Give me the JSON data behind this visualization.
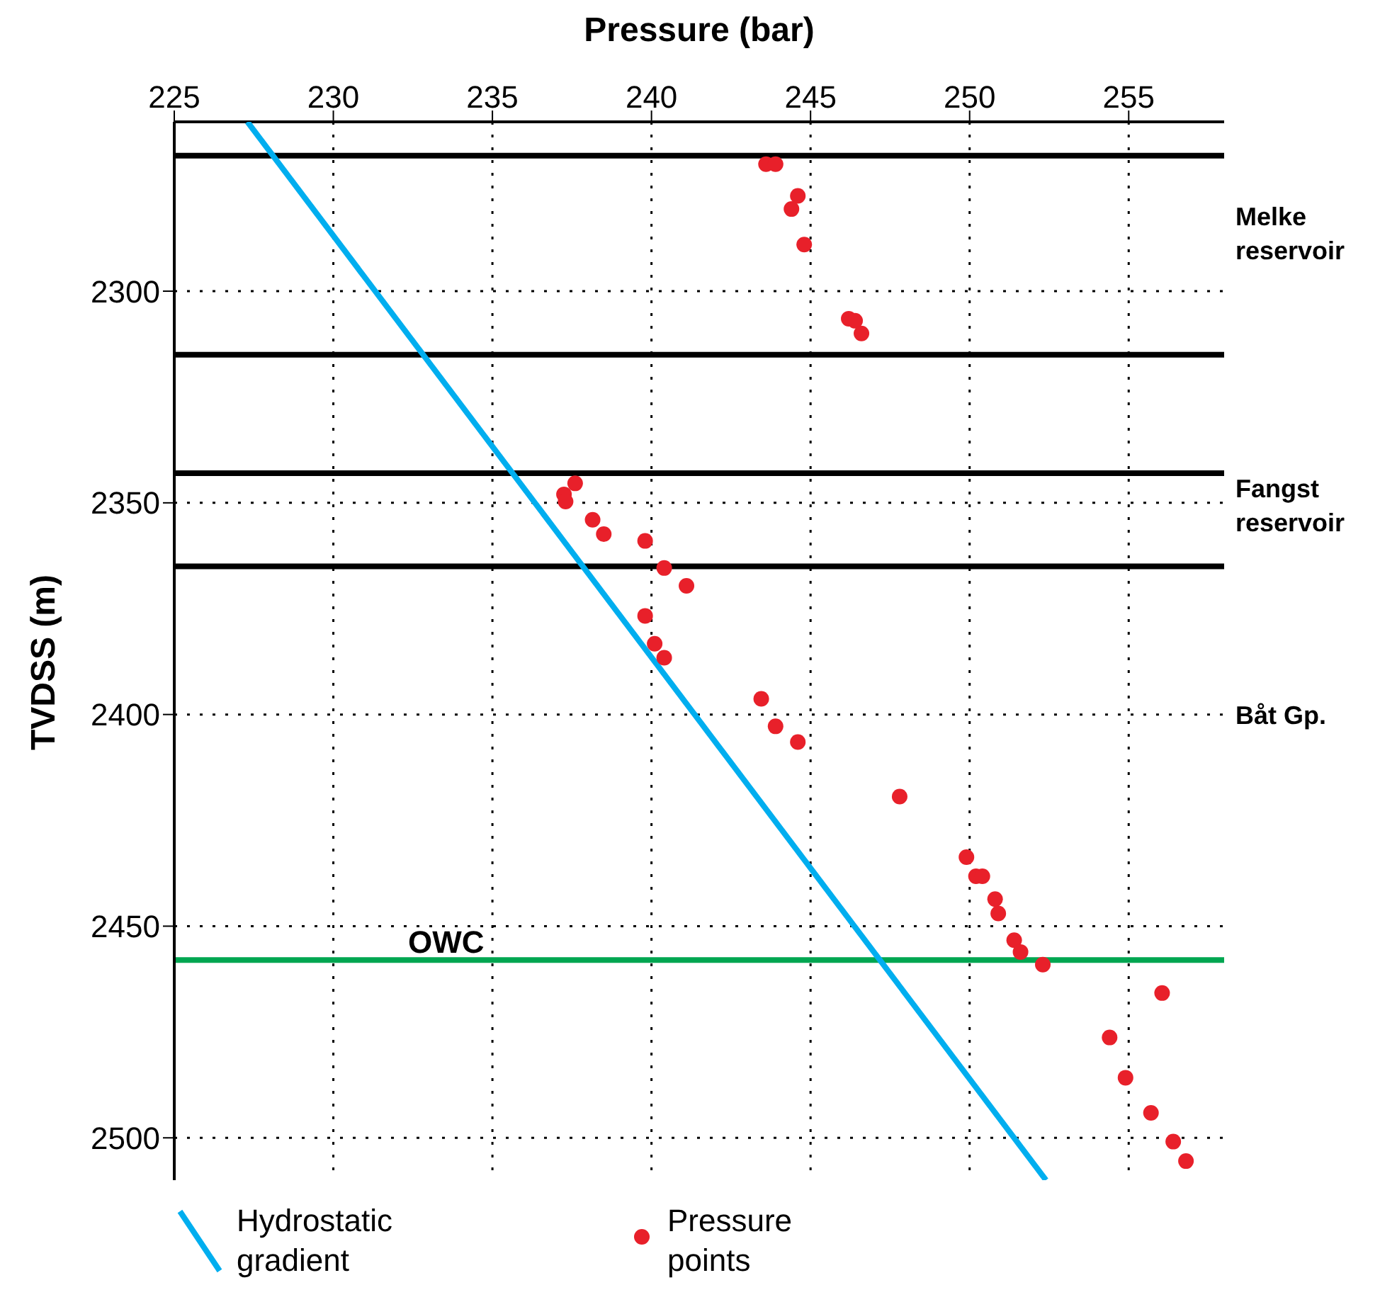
{
  "chart_data": {
    "type": "scatter",
    "xlabel": "Pressure (bar)",
    "ylabel": "TVDSS (m)",
    "xlim": [
      225,
      258
    ],
    "xticks": [
      225,
      230,
      235,
      240,
      245,
      250,
      255
    ],
    "ylim": [
      2510,
      2260
    ],
    "yticks": [
      2300,
      2350,
      2400,
      2450,
      2500
    ],
    "grid": true,
    "legend": "bottom",
    "series": [
      {
        "name": "Hydrostatic gradient",
        "type": "line",
        "color": "#00aeef",
        "x": [
          227.3,
          252.4
        ],
        "values": [
          2260,
          2510
        ]
      },
      {
        "name": "Pressure points",
        "type": "scatter",
        "color": "#e8202a",
        "marker": "circle",
        "x": [
          243.6,
          243.9,
          244.6,
          244.4,
          244.8,
          246.2,
          246.4,
          246.6,
          237.6,
          237.25,
          237.3,
          238.15,
          238.5,
          239.8,
          240.4,
          241.1,
          239.8,
          240.1,
          240.4,
          243.45,
          243.9,
          244.6,
          247.8,
          249.9,
          250.2,
          250.4,
          250.8,
          250.9,
          251.4,
          251.6,
          252.3,
          256.05,
          254.4,
          254.9,
          255.7,
          256.4,
          256.8
        ],
        "values": [
          2270,
          2270,
          2277.5,
          2280.6,
          2289,
          2306.5,
          2307,
          2310,
          2345.4,
          2348,
          2349.7,
          2354,
          2357.4,
          2359,
          2365.4,
          2369.6,
          2376.7,
          2383.3,
          2386.6,
          2396.3,
          2402.8,
          2406.5,
          2419.4,
          2433.7,
          2438.2,
          2438.2,
          2443.6,
          2447,
          2453.3,
          2456.1,
          2459.1,
          2465.8,
          2476.3,
          2485.8,
          2494.1,
          2500.9,
          2505.5
        ]
      }
    ],
    "ref_lines": [
      {
        "axis": "y",
        "value": 2268,
        "color": "#000000"
      },
      {
        "axis": "y",
        "value": 2315,
        "color": "#000000"
      },
      {
        "axis": "y",
        "value": 2343,
        "color": "#000000"
      },
      {
        "axis": "y",
        "value": 2365,
        "color": "#000000"
      },
      {
        "axis": "y",
        "value": 2458,
        "label": "OWC",
        "color": "#00a651"
      }
    ],
    "annotations": [
      "Melke reservoir",
      "Fangst reservoir",
      "Båt Gp."
    ]
  }
}
